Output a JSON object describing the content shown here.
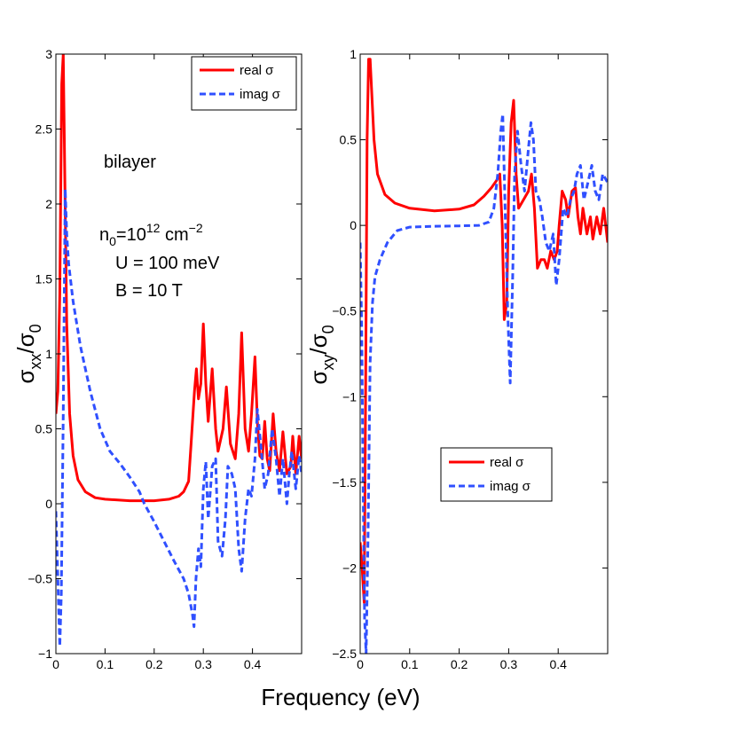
{
  "chart_data": [
    {
      "type": "line",
      "xlim": [
        0,
        0.5
      ],
      "ylim": [
        -1,
        3
      ],
      "xticks": [
        0,
        0.1,
        0.2,
        0.3,
        0.4
      ],
      "xtick_labels": [
        "0",
        "0.1",
        "0.2",
        "0.3",
        "0.4"
      ],
      "yticks": [
        -1,
        -0.5,
        0,
        0.5,
        1,
        1.5,
        2,
        2.5,
        3
      ],
      "ytick_labels": [
        "−1",
        "−0.5",
        "0",
        "0.5",
        "1",
        "1.5",
        "2",
        "2.5",
        "3"
      ],
      "ylabel": {
        "main": "σ",
        "sub1": "xx",
        "slash": "/σ",
        "sub2": "0"
      },
      "legend_position": "top-right",
      "grid": false,
      "annotations": {
        "bilayer": "bilayer",
        "density_main": "n",
        "density_sub": "0",
        "density_eq": "=10",
        "density_exp": "12",
        "density_unit": " cm",
        "density_unit_exp": "−2",
        "potential": "U = 100 meV",
        "field": "B = 10 T"
      },
      "series": [
        {
          "name": "real σ",
          "color": "#ff0000",
          "dash": "solid",
          "points": [
            [
              0,
              0.6
            ],
            [
              0.004,
              0.75
            ],
            [
              0.008,
              1.4
            ],
            [
              0.012,
              2.8
            ],
            [
              0.015,
              3.0
            ],
            [
              0.018,
              2.2
            ],
            [
              0.022,
              1.2
            ],
            [
              0.028,
              0.6
            ],
            [
              0.035,
              0.32
            ],
            [
              0.045,
              0.16
            ],
            [
              0.06,
              0.08
            ],
            [
              0.08,
              0.04
            ],
            [
              0.1,
              0.03
            ],
            [
              0.15,
              0.02
            ],
            [
              0.2,
              0.02
            ],
            [
              0.23,
              0.03
            ],
            [
              0.25,
              0.05
            ],
            [
              0.26,
              0.08
            ],
            [
              0.27,
              0.15
            ],
            [
              0.275,
              0.4
            ],
            [
              0.282,
              0.75
            ],
            [
              0.286,
              0.9
            ],
            [
              0.29,
              0.7
            ],
            [
              0.295,
              0.8
            ],
            [
              0.3,
              1.2
            ],
            [
              0.305,
              0.8
            ],
            [
              0.31,
              0.55
            ],
            [
              0.318,
              0.9
            ],
            [
              0.325,
              0.5
            ],
            [
              0.33,
              0.35
            ],
            [
              0.34,
              0.5
            ],
            [
              0.347,
              0.78
            ],
            [
              0.355,
              0.4
            ],
            [
              0.365,
              0.3
            ],
            [
              0.372,
              0.6
            ],
            [
              0.378,
              1.14
            ],
            [
              0.385,
              0.5
            ],
            [
              0.392,
              0.35
            ],
            [
              0.398,
              0.6
            ],
            [
              0.405,
              0.98
            ],
            [
              0.41,
              0.55
            ],
            [
              0.415,
              0.32
            ],
            [
              0.42,
              0.3
            ],
            [
              0.425,
              0.55
            ],
            [
              0.43,
              0.3
            ],
            [
              0.435,
              0.22
            ],
            [
              0.442,
              0.6
            ],
            [
              0.448,
              0.35
            ],
            [
              0.455,
              0.22
            ],
            [
              0.462,
              0.48
            ],
            [
              0.47,
              0.2
            ],
            [
              0.478,
              0.25
            ],
            [
              0.482,
              0.45
            ],
            [
              0.488,
              0.2
            ],
            [
              0.495,
              0.45
            ],
            [
              0.5,
              0.3
            ]
          ]
        },
        {
          "name": "imag σ",
          "color": "#3050ff",
          "dash": "dashed",
          "points": [
            [
              0,
              -0.05
            ],
            [
              0.004,
              -0.5
            ],
            [
              0.008,
              -0.95
            ],
            [
              0.011,
              -0.6
            ],
            [
              0.015,
              0.6
            ],
            [
              0.019,
              2.1
            ],
            [
              0.022,
              1.8
            ],
            [
              0.026,
              1.6
            ],
            [
              0.035,
              1.35
            ],
            [
              0.05,
              1.05
            ],
            [
              0.07,
              0.75
            ],
            [
              0.09,
              0.5
            ],
            [
              0.11,
              0.35
            ],
            [
              0.13,
              0.27
            ],
            [
              0.15,
              0.18
            ],
            [
              0.17,
              0.08
            ],
            [
              0.18,
              0.0
            ],
            [
              0.2,
              -0.12
            ],
            [
              0.22,
              -0.25
            ],
            [
              0.24,
              -0.38
            ],
            [
              0.26,
              -0.5
            ],
            [
              0.27,
              -0.6
            ],
            [
              0.278,
              -0.74
            ],
            [
              0.281,
              -0.82
            ],
            [
              0.285,
              -0.5
            ],
            [
              0.29,
              -0.3
            ],
            [
              0.295,
              -0.42
            ],
            [
              0.3,
              0.1
            ],
            [
              0.305,
              0.28
            ],
            [
              0.31,
              -0.1
            ],
            [
              0.318,
              0.25
            ],
            [
              0.325,
              0.3
            ],
            [
              0.33,
              -0.25
            ],
            [
              0.338,
              -0.35
            ],
            [
              0.345,
              -0.1
            ],
            [
              0.35,
              0.25
            ],
            [
              0.358,
              0.2
            ],
            [
              0.365,
              0.1
            ],
            [
              0.372,
              -0.3
            ],
            [
              0.378,
              -0.45
            ],
            [
              0.385,
              -0.1
            ],
            [
              0.392,
              0.1
            ],
            [
              0.398,
              0.05
            ],
            [
              0.405,
              0.3
            ],
            [
              0.41,
              0.63
            ],
            [
              0.418,
              0.35
            ],
            [
              0.425,
              0.1
            ],
            [
              0.432,
              0.2
            ],
            [
              0.44,
              0.5
            ],
            [
              0.448,
              0.3
            ],
            [
              0.455,
              0.05
            ],
            [
              0.462,
              0.3
            ],
            [
              0.47,
              0.0
            ],
            [
              0.475,
              0.2
            ],
            [
              0.48,
              0.35
            ],
            [
              0.488,
              0.1
            ],
            [
              0.495,
              0.32
            ],
            [
              0.5,
              0.2
            ]
          ]
        }
      ]
    },
    {
      "type": "line",
      "xlim": [
        0,
        0.5
      ],
      "ylim": [
        -2.5,
        1
      ],
      "xticks": [
        0,
        0.1,
        0.2,
        0.3,
        0.4
      ],
      "xtick_labels": [
        "0",
        "0.1",
        "0.2",
        "0.3",
        "0.4"
      ],
      "yticks": [
        -2.5,
        -2,
        -1.5,
        -1,
        -0.5,
        0,
        0.5,
        1
      ],
      "ytick_labels": [
        "−2.5",
        "−2",
        "−1.5",
        "−1",
        "−0.5",
        "0",
        "0.5",
        "1"
      ],
      "ylabel": {
        "main": "σ",
        "sub1": "xy",
        "slash": "/σ",
        "sub2": "0"
      },
      "legend_position": "lower-middle",
      "grid": false,
      "series": [
        {
          "name": "real σ",
          "color": "#ff0000",
          "dash": "solid",
          "points": [
            [
              0,
              -1.85
            ],
            [
              0.004,
              -2.0
            ],
            [
              0.008,
              -2.2
            ],
            [
              0.011,
              -1.0
            ],
            [
              0.014,
              0.5
            ],
            [
              0.017,
              0.97
            ],
            [
              0.02,
              0.97
            ],
            [
              0.023,
              0.8
            ],
            [
              0.028,
              0.5
            ],
            [
              0.035,
              0.3
            ],
            [
              0.05,
              0.18
            ],
            [
              0.07,
              0.13
            ],
            [
              0.1,
              0.1
            ],
            [
              0.15,
              0.085
            ],
            [
              0.2,
              0.095
            ],
            [
              0.23,
              0.12
            ],
            [
              0.25,
              0.17
            ],
            [
              0.265,
              0.22
            ],
            [
              0.275,
              0.26
            ],
            [
              0.282,
              0.3
            ],
            [
              0.287,
              0.0
            ],
            [
              0.291,
              -0.55
            ],
            [
              0.296,
              -0.45
            ],
            [
              0.3,
              0.2
            ],
            [
              0.305,
              0.6
            ],
            [
              0.31,
              0.73
            ],
            [
              0.315,
              0.3
            ],
            [
              0.32,
              0.1
            ],
            [
              0.33,
              0.15
            ],
            [
              0.34,
              0.2
            ],
            [
              0.346,
              0.3
            ],
            [
              0.352,
              0.1
            ],
            [
              0.358,
              -0.25
            ],
            [
              0.365,
              -0.2
            ],
            [
              0.372,
              -0.2
            ],
            [
              0.378,
              -0.25
            ],
            [
              0.385,
              -0.15
            ],
            [
              0.392,
              -0.2
            ],
            [
              0.398,
              -0.15
            ],
            [
              0.402,
              0.0
            ],
            [
              0.408,
              0.2
            ],
            [
              0.415,
              0.15
            ],
            [
              0.42,
              0.05
            ],
            [
              0.428,
              0.2
            ],
            [
              0.435,
              0.22
            ],
            [
              0.44,
              0.05
            ],
            [
              0.445,
              -0.05
            ],
            [
              0.45,
              0.1
            ],
            [
              0.458,
              -0.05
            ],
            [
              0.465,
              0.05
            ],
            [
              0.47,
              -0.08
            ],
            [
              0.478,
              0.05
            ],
            [
              0.485,
              -0.05
            ],
            [
              0.492,
              0.1
            ],
            [
              0.5,
              -0.1
            ]
          ]
        },
        {
          "name": "imag σ",
          "color": "#3050ff",
          "dash": "dashed",
          "points": [
            [
              0,
              -0.1
            ],
            [
              0.003,
              -0.6
            ],
            [
              0.006,
              -1.5
            ],
            [
              0.009,
              -2.3
            ],
            [
              0.012,
              -2.5
            ],
            [
              0.016,
              -1.8
            ],
            [
              0.02,
              -0.8
            ],
            [
              0.025,
              -0.45
            ],
            [
              0.03,
              -0.3
            ],
            [
              0.04,
              -0.2
            ],
            [
              0.055,
              -0.1
            ],
            [
              0.075,
              -0.03
            ],
            [
              0.1,
              -0.01
            ],
            [
              0.15,
              -0.005
            ],
            [
              0.2,
              -0.003
            ],
            [
              0.24,
              0.0
            ],
            [
              0.26,
              0.02
            ],
            [
              0.27,
              0.1
            ],
            [
              0.278,
              0.3
            ],
            [
              0.284,
              0.55
            ],
            [
              0.288,
              0.65
            ],
            [
              0.292,
              0.2
            ],
            [
              0.298,
              -0.5
            ],
            [
              0.303,
              -0.92
            ],
            [
              0.308,
              -0.3
            ],
            [
              0.312,
              0.3
            ],
            [
              0.318,
              0.55
            ],
            [
              0.325,
              0.35
            ],
            [
              0.332,
              0.2
            ],
            [
              0.34,
              0.45
            ],
            [
              0.345,
              0.6
            ],
            [
              0.35,
              0.5
            ],
            [
              0.355,
              0.2
            ],
            [
              0.362,
              0.15
            ],
            [
              0.368,
              0.05
            ],
            [
              0.375,
              -0.1
            ],
            [
              0.382,
              -0.15
            ],
            [
              0.39,
              -0.05
            ],
            [
              0.396,
              -0.35
            ],
            [
              0.402,
              -0.2
            ],
            [
              0.41,
              0.1
            ],
            [
              0.418,
              0.05
            ],
            [
              0.425,
              0.15
            ],
            [
              0.432,
              0.2
            ],
            [
              0.438,
              0.3
            ],
            [
              0.445,
              0.35
            ],
            [
              0.452,
              0.15
            ],
            [
              0.46,
              0.25
            ],
            [
              0.468,
              0.35
            ],
            [
              0.475,
              0.2
            ],
            [
              0.482,
              0.15
            ],
            [
              0.49,
              0.3
            ],
            [
              0.5,
              0.25
            ]
          ]
        }
      ]
    }
  ],
  "xlabel": "Frequency  (eV)"
}
